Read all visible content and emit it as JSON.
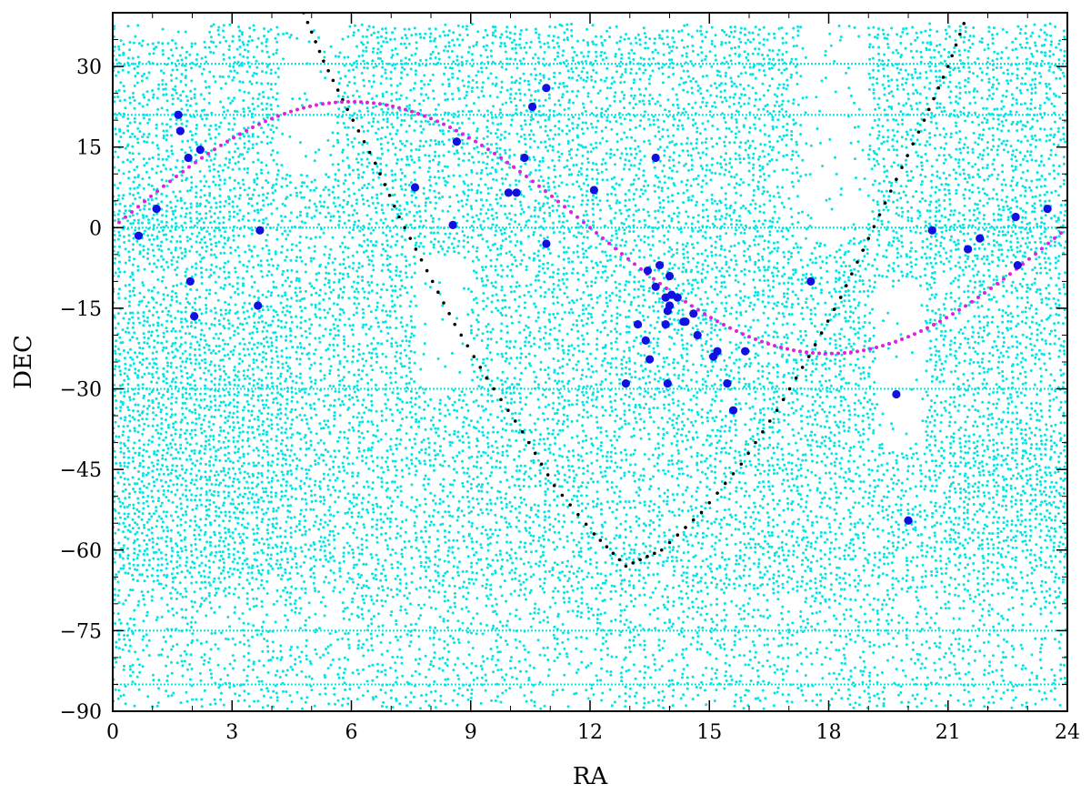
{
  "chart_data": {
    "type": "scatter",
    "xlabel": "RA",
    "ylabel": "DEC",
    "xlim": [
      0,
      24
    ],
    "ylim": [
      -90,
      40
    ],
    "x_ticks": [
      0,
      3,
      6,
      9,
      12,
      15,
      18,
      21,
      24
    ],
    "x_tick_labels": [
      "0",
      "3",
      "6",
      "9",
      "12",
      "15",
      "18",
      "21",
      "24"
    ],
    "y_ticks": [
      -90,
      -75,
      -60,
      -45,
      -30,
      -15,
      0,
      15,
      30
    ],
    "y_tick_labels": [
      "−90",
      "−75",
      "−60",
      "−45",
      "−30",
      "−15",
      "0",
      "15",
      "30"
    ],
    "grid": false,
    "colors": {
      "coverage": "#00e5e5",
      "targets": "#1010e0",
      "ecliptic": "#e020e0",
      "galactic_plane": "#000000"
    },
    "series": [
      {
        "kind": "coverage-field",
        "color": "#00e5e5",
        "description_regions": [
          {
            "ra": [
              0,
              24
            ],
            "dec": [
              -90,
              40
            ]
          }
        ]
      },
      {
        "kind": "ecliptic",
        "color": "#e020e0",
        "equation": "dec = 23.44 * sin(ra * 15 deg)",
        "ra_range": [
          0,
          24
        ]
      },
      {
        "kind": "galactic-plane",
        "color": "#000000",
        "points": [
          [
            4.8,
            40
          ],
          [
            5.3,
            31
          ],
          [
            5.9,
            22
          ],
          [
            6.6,
            12
          ],
          [
            7.2,
            2
          ],
          [
            7.9,
            -8
          ],
          [
            8.6,
            -18
          ],
          [
            9.4,
            -28
          ],
          [
            10.3,
            -38
          ],
          [
            11.1,
            -48
          ],
          [
            12.1,
            -57
          ],
          [
            12.9,
            -63
          ],
          [
            13.8,
            -60
          ],
          [
            14.8,
            -53
          ],
          [
            15.8,
            -44
          ],
          [
            16.7,
            -34
          ],
          [
            17.5,
            -24
          ],
          [
            18.3,
            -13
          ],
          [
            19.0,
            -2
          ],
          [
            19.7,
            9
          ],
          [
            20.4,
            20
          ],
          [
            21.0,
            30
          ],
          [
            21.5,
            40
          ]
        ]
      },
      {
        "kind": "targets",
        "color": "#1010e0",
        "points": [
          [
            0.65,
            -1.5
          ],
          [
            1.1,
            3.5
          ],
          [
            1.65,
            21
          ],
          [
            1.7,
            18
          ],
          [
            1.9,
            13
          ],
          [
            2.2,
            14.5
          ],
          [
            1.95,
            -10
          ],
          [
            2.05,
            -16.5
          ],
          [
            3.7,
            -0.5
          ],
          [
            3.65,
            -14.5
          ],
          [
            7.6,
            7.5
          ],
          [
            8.55,
            0.5
          ],
          [
            8.65,
            16
          ],
          [
            9.95,
            6.5
          ],
          [
            10.15,
            6.5
          ],
          [
            10.35,
            13
          ],
          [
            10.55,
            22.5
          ],
          [
            10.9,
            26
          ],
          [
            10.9,
            -3
          ],
          [
            12.1,
            7
          ],
          [
            13.65,
            13
          ],
          [
            13.2,
            -18
          ],
          [
            13.4,
            -21
          ],
          [
            13.45,
            -8
          ],
          [
            13.5,
            -24.5
          ],
          [
            13.65,
            -11
          ],
          [
            13.75,
            -7
          ],
          [
            13.9,
            -13
          ],
          [
            13.9,
            -18
          ],
          [
            13.95,
            -15.5
          ],
          [
            13.95,
            -29
          ],
          [
            14.0,
            -9
          ],
          [
            14.05,
            -12.5
          ],
          [
            14.0,
            -14.5
          ],
          [
            14.2,
            -13
          ],
          [
            14.35,
            -17.5
          ],
          [
            14.4,
            -17.5
          ],
          [
            14.6,
            -16
          ],
          [
            14.7,
            -20
          ],
          [
            15.1,
            -24
          ],
          [
            15.2,
            -23
          ],
          [
            15.45,
            -29
          ],
          [
            15.6,
            -34
          ],
          [
            15.9,
            -23
          ],
          [
            12.9,
            -29
          ],
          [
            17.55,
            -10
          ],
          [
            19.7,
            -31
          ],
          [
            20.0,
            -54.5
          ],
          [
            20.6,
            -0.5
          ],
          [
            21.5,
            -4
          ],
          [
            21.8,
            -2
          ],
          [
            22.7,
            2
          ],
          [
            22.75,
            -7
          ],
          [
            23.5,
            3.5
          ]
        ]
      }
    ]
  }
}
